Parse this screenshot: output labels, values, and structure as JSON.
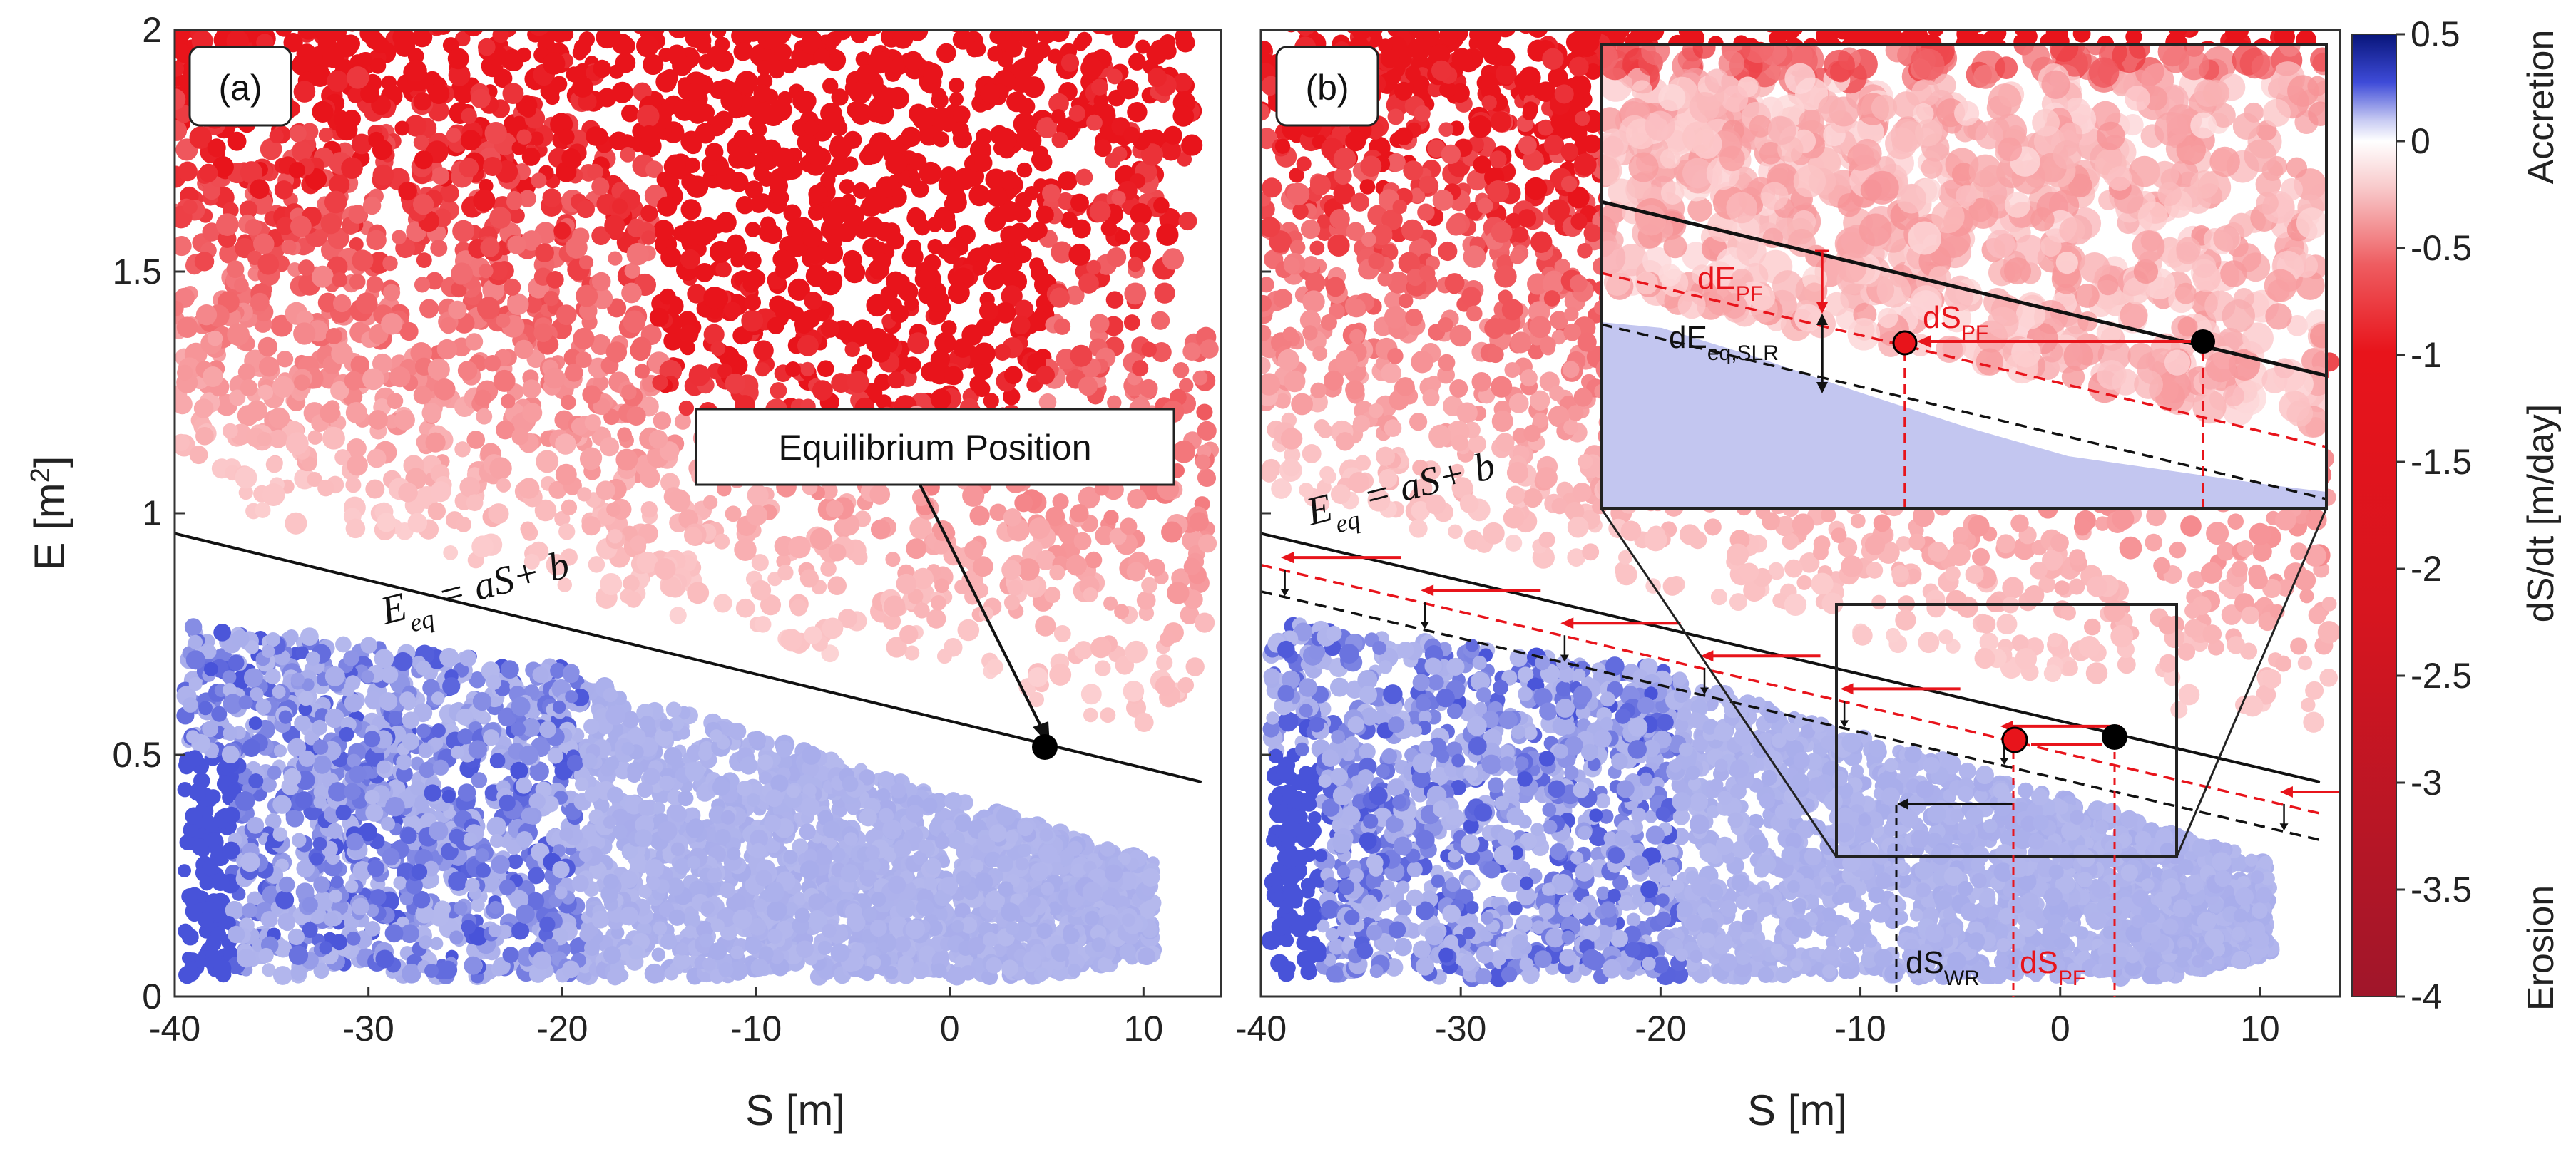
{
  "chart_data": [
    {
      "type": "scatter",
      "panel_label": "(a)",
      "xlabel": "S [m]",
      "ylabel": "E [m",
      "ylabel_sup": "2",
      "ylabel_close": "]",
      "xlim": [
        -40,
        14
      ],
      "ylim": [
        0,
        2
      ],
      "xticks": [
        -40,
        -30,
        -20,
        -10,
        0,
        10
      ],
      "yticks": [
        0,
        0.5,
        1,
        1.5,
        2
      ],
      "equilibrium_line": {
        "slope": -0.0097,
        "intercept": 0.57,
        "x_range": [
          -40,
          13
        ]
      },
      "equation_label": {
        "E": "E",
        "sub": "eq",
        "rest": " = aS+ b"
      },
      "callout": {
        "text": "Equilibrium Position",
        "point": [
          5.5,
          0.516
        ]
      },
      "points": [
        {
          "x": 5.5,
          "y": 0.516,
          "color": "#000000"
        }
      ]
    },
    {
      "type": "scatter",
      "panel_label": "(b)",
      "xlabel": "S [m]",
      "xlim": [
        -40,
        14
      ],
      "ylim": [
        0,
        2
      ],
      "xticks": [
        -40,
        -30,
        -20,
        -10,
        0,
        10
      ],
      "yticks": [
        0,
        0.5,
        1,
        1.5,
        2
      ],
      "equilibrium_line": {
        "slope": -0.0097,
        "intercept": 0.57,
        "x_range": [
          -40,
          13
        ]
      },
      "shifted_line_red": {
        "slope": -0.0097,
        "intercept": 0.505,
        "x_range": [
          -40,
          13
        ]
      },
      "shifted_line_black": {
        "slope": -0.0097,
        "intercept": 0.45,
        "x_range": [
          -40,
          13
        ]
      },
      "equation_label": {
        "E": "E",
        "sub": "eq",
        "rest": " = aS+ b"
      },
      "points": [
        {
          "x": 4.5,
          "y": 0.527,
          "color": "#000000"
        },
        {
          "x": -1.0,
          "y": 0.522,
          "color": "#e8141b"
        }
      ],
      "annotations": [
        {
          "main": "dS",
          "sub": "WR",
          "color": "#000000"
        },
        {
          "main": "dS",
          "sub": "PF",
          "color": "#e8141b"
        }
      ],
      "zoom_box": {
        "x_range": [
          -10,
          7.5
        ],
        "y_range": [
          0.28,
          0.81
        ]
      },
      "inset_annotations": [
        {
          "main": "dE",
          "sub": "PF",
          "color": "#e8141b"
        },
        {
          "main": "dS",
          "sub": "PF",
          "color": "#e8141b"
        },
        {
          "main": "dE",
          "sub": "eq,SLR",
          "color": "#000000"
        }
      ]
    }
  ],
  "colorbar": {
    "label": "dS/dt [m/day]",
    "range": [
      -4,
      0.5
    ],
    "ticks": [
      "0.5",
      "0",
      "-0.5",
      "-1",
      "-1.5",
      "-2",
      "-2.5",
      "-3",
      "-3.5",
      "-4"
    ],
    "top_label": "Accretion",
    "bottom_label": "Erosion",
    "colors": {
      "accretion_max": "#0a1a8c",
      "zero": "#ffffff",
      "erosion": "#e8141b",
      "erosion_max": "#a0162a"
    }
  },
  "colors": {
    "blue_light": "#c3c6f0",
    "blue_mid": "#8a8de4",
    "blue_dark": "#4452d6",
    "red": "#e8141b",
    "line": "#111111"
  }
}
